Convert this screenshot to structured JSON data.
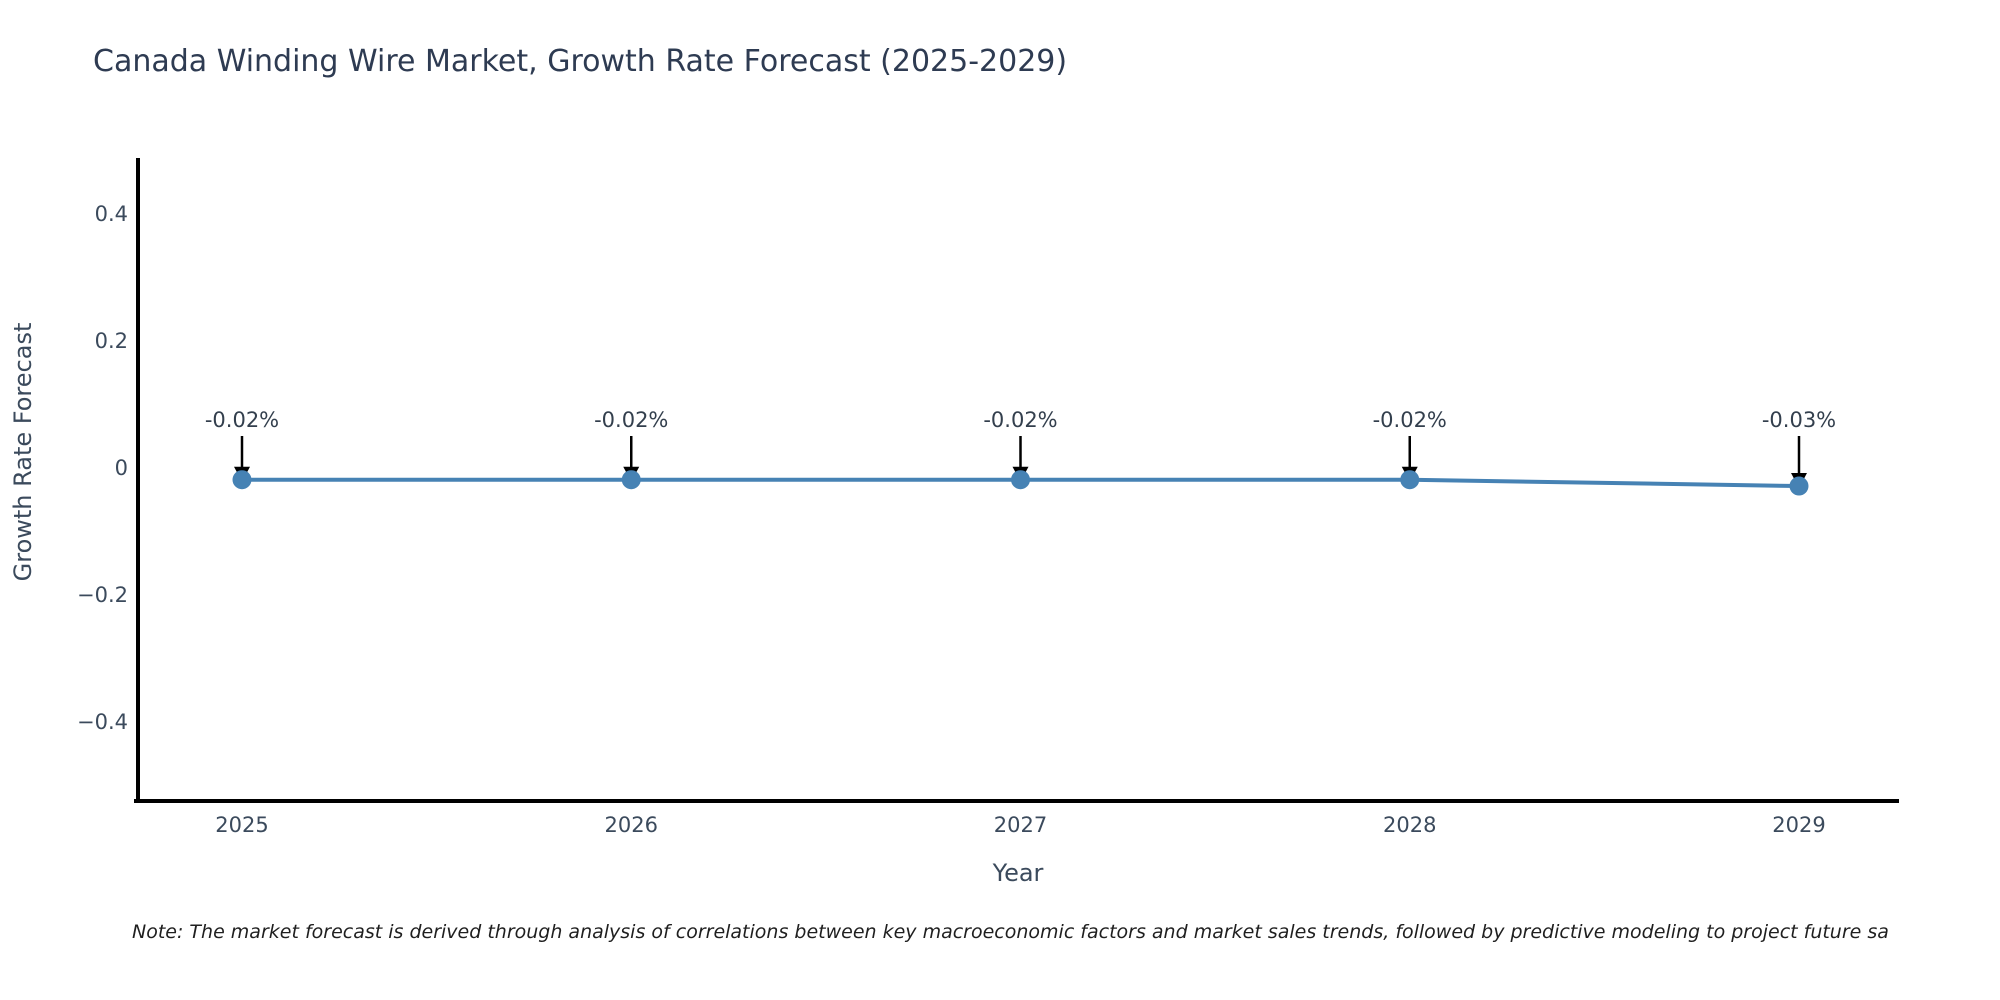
{
  "chart": {
    "title": "Canada Winding Wire Market, Growth Rate Forecast (2025-2029)",
    "note": "Note: The market forecast is derived through analysis of correlations between key macroeconomic factors and market sales trends, followed by predictive modeling to project future sa"
  },
  "chart_data": {
    "type": "line",
    "title": "Canada Winding Wire Market, Growth Rate Forecast (2025-2029)",
    "xlabel": "Year",
    "ylabel": "Growth Rate Forecast",
    "categories": [
      "2025",
      "2026",
      "2027",
      "2028",
      "2029"
    ],
    "values": [
      -0.02,
      -0.02,
      -0.02,
      -0.02,
      -0.03
    ],
    "point_labels": [
      "-0.02%",
      "-0.02%",
      "-0.02%",
      "-0.02%",
      "-0.03%"
    ],
    "ytick_values": [
      0.4,
      0.2,
      0,
      -0.2,
      -0.4
    ],
    "ytick_labels": [
      "0.4",
      "0.2",
      "0",
      "−0.2",
      "−0.4"
    ],
    "ylim": [
      -0.53,
      0.49
    ],
    "grid": false,
    "legend_position": "none",
    "line_color": "#4682B4",
    "marker_color": "#4682B4",
    "arrow_color": "#000000",
    "axis_color": "#000000",
    "tick_text_color": "#3b4a5c",
    "annotation_text_color": "#333f4d"
  }
}
